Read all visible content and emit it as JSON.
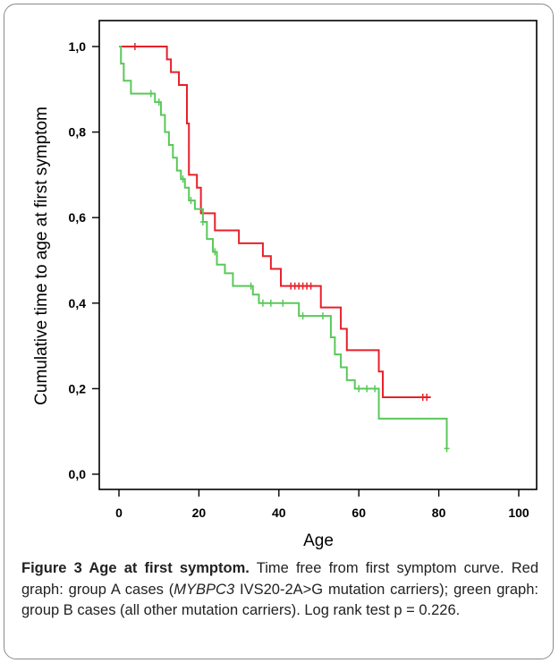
{
  "caption": {
    "title": "Figure 3 Age at first symptom.",
    "text1": " Time free from first symptom curve. Red graph: group A cases (",
    "gene": "MYBPC3",
    "text2": " IVS20-2A>G mutation carriers); green graph: group B cases (all other mutation carriers). Log rank test p = 0.226."
  },
  "chart_data": {
    "type": "line",
    "xlabel": "Age",
    "ylabel": "Cumulative time to age at first symptom",
    "xlim": [
      0,
      100
    ],
    "ylim": [
      0,
      1.0
    ],
    "x_ticks": [
      "0",
      "20",
      "40",
      "60",
      "80",
      "100"
    ],
    "y_ticks": [
      "0,0",
      "0,2",
      "0,4",
      "0,6",
      "0,8",
      "1,0"
    ],
    "grid": false,
    "series": [
      {
        "color": "#e8202a",
        "step_points": [
          [
            0,
            1.0
          ],
          [
            11,
            1.0
          ],
          [
            12,
            0.97
          ],
          [
            13,
            0.94
          ],
          [
            15,
            0.91
          ],
          [
            17,
            0.82
          ],
          [
            17.5,
            0.7
          ],
          [
            19.5,
            0.67
          ],
          [
            20.5,
            0.61
          ],
          [
            22,
            0.61
          ],
          [
            24,
            0.57
          ],
          [
            30,
            0.54
          ],
          [
            36,
            0.51
          ],
          [
            38,
            0.48
          ],
          [
            40.5,
            0.44
          ],
          [
            50.5,
            0.39
          ],
          [
            55.5,
            0.34
          ],
          [
            57,
            0.29
          ],
          [
            65,
            0.24
          ],
          [
            66,
            0.18
          ],
          [
            78,
            0.18
          ]
        ],
        "censored": [
          4,
          43,
          44,
          45,
          46,
          47,
          48,
          76,
          77
        ]
      },
      {
        "color": "#5ac85a",
        "step_points": [
          [
            0,
            1.0
          ],
          [
            0.5,
            0.96
          ],
          [
            1.2,
            0.92
          ],
          [
            3,
            0.89
          ],
          [
            8,
            0.89
          ],
          [
            9,
            0.87
          ],
          [
            10.5,
            0.84
          ],
          [
            11.5,
            0.8
          ],
          [
            12.5,
            0.77
          ],
          [
            13.5,
            0.74
          ],
          [
            14.5,
            0.71
          ],
          [
            15.5,
            0.69
          ],
          [
            16.5,
            0.67
          ],
          [
            17.5,
            0.64
          ],
          [
            19,
            0.62
          ],
          [
            21,
            0.59
          ],
          [
            22,
            0.55
          ],
          [
            23.5,
            0.52
          ],
          [
            24.5,
            0.49
          ],
          [
            26.5,
            0.47
          ],
          [
            28.5,
            0.44
          ],
          [
            33.5,
            0.42
          ],
          [
            35,
            0.4
          ],
          [
            45,
            0.37
          ],
          [
            53,
            0.32
          ],
          [
            54,
            0.28
          ],
          [
            55.5,
            0.25
          ],
          [
            57,
            0.22
          ],
          [
            59,
            0.2
          ],
          [
            65,
            0.13
          ],
          [
            82,
            0.13
          ],
          [
            82,
            0.06
          ]
        ],
        "censored": [
          8,
          10,
          16,
          18,
          21,
          24,
          33,
          36,
          38,
          41,
          46,
          51,
          60,
          62,
          64,
          82
        ]
      }
    ]
  }
}
